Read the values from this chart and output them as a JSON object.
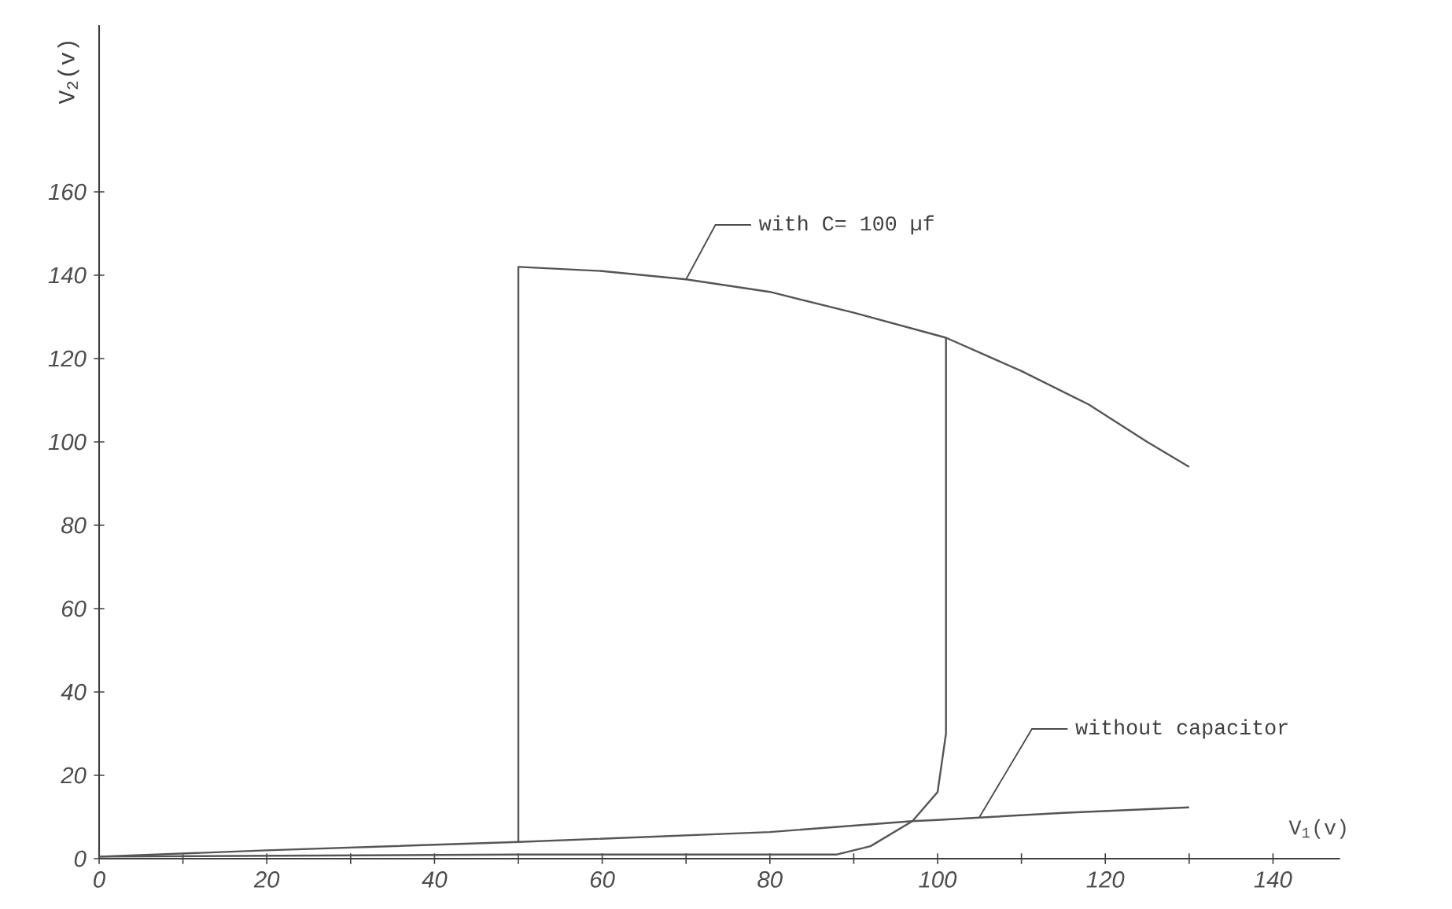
{
  "chart_data": {
    "type": "line",
    "xlabel": "V$_{1}$(v)",
    "ylabel": "V$_{2}$(v)",
    "xlim": [
      0,
      148
    ],
    "ylim": [
      0,
      200
    ],
    "xticks": [
      0,
      {
        "value": 10,
        "label": null
      },
      20,
      {
        "value": 30,
        "label": null
      },
      40,
      {
        "value": 50,
        "label": null
      },
      60,
      {
        "value": 70,
        "label": null
      },
      80,
      {
        "value": 90,
        "label": null
      },
      100,
      {
        "value": 110,
        "label": null
      },
      120,
      {
        "value": 130,
        "label": null
      },
      140
    ],
    "yticks": [
      0,
      20,
      40,
      60,
      80,
      100,
      120,
      140,
      160
    ],
    "series": [
      {
        "color": "#555555",
        "x": [
          0,
          50,
          88,
          92,
          97,
          100,
          101,
          101,
          110,
          118,
          125,
          130
        ],
        "values": [
          0.5,
          1,
          1,
          3,
          9,
          16,
          30,
          125,
          117,
          109,
          100,
          94
        ]
      },
      {
        "color": "#555555",
        "x": [
          101,
          90,
          80,
          70,
          60,
          50,
          50
        ],
        "values": [
          125,
          131,
          136,
          139,
          141,
          142,
          4
        ]
      },
      {
        "color": "#555555",
        "x": [
          0,
          20,
          50,
          80,
          97,
          100,
          115,
          130
        ],
        "values": [
          0.5,
          2,
          4,
          6.4,
          9,
          9.3,
          11,
          12.3
        ]
      }
    ],
    "annotations": [
      {
        "text": "with C= 100 µf",
        "x": 70,
        "y": 139
      },
      {
        "text": "without capacitor",
        "x": 105,
        "y": 10
      }
    ]
  }
}
